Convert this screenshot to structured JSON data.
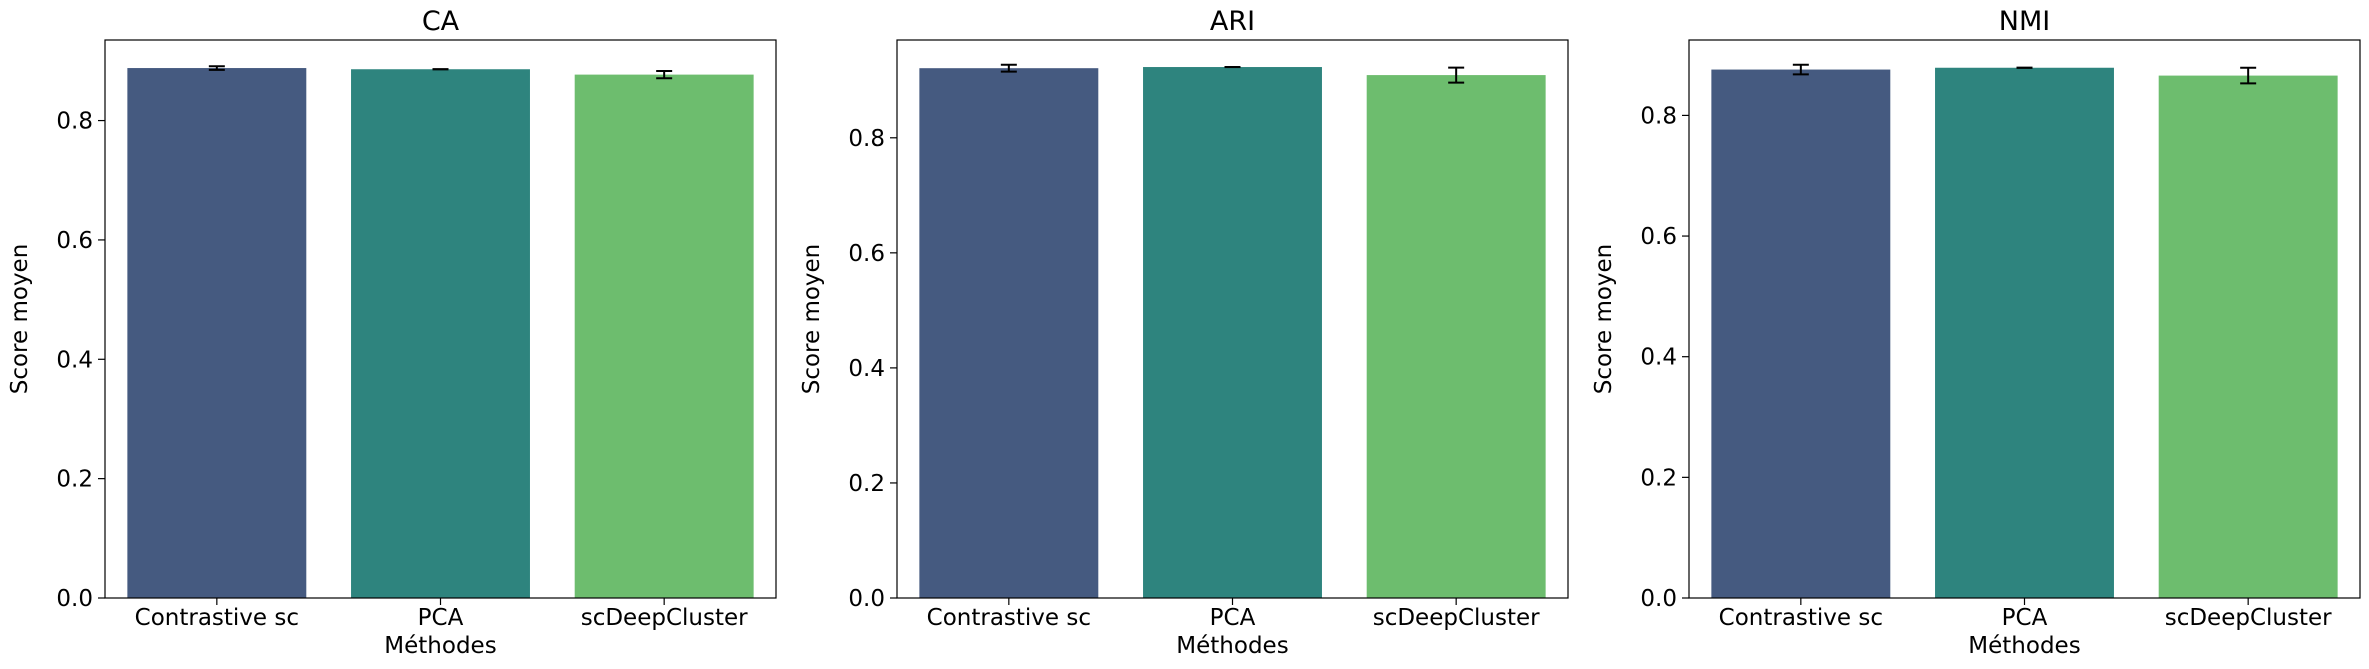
{
  "chart_data": [
    {
      "type": "bar",
      "title": "CA",
      "xlabel": "Méthodes",
      "ylabel": "Score moyen",
      "categories": [
        "Contrastive sc",
        "PCA",
        "scDeepCluster"
      ],
      "values": [
        0.888,
        0.886,
        0.877
      ],
      "errors": [
        0.003,
        0.0,
        0.006
      ],
      "colors": [
        "#455a80",
        "#2e847e",
        "#6dbd6e"
      ],
      "ylim": [
        0,
        0.935
      ],
      "yticks": [
        "0.0",
        "0.2",
        "0.4",
        "0.6",
        "0.8"
      ],
      "grid": false
    },
    {
      "type": "bar",
      "title": "ARI",
      "xlabel": "Méthodes",
      "ylabel": "Score moyen",
      "categories": [
        "Contrastive sc",
        "PCA",
        "scDeepCluster"
      ],
      "values": [
        0.921,
        0.923,
        0.909
      ],
      "errors": [
        0.006,
        0.0,
        0.013
      ],
      "colors": [
        "#455a80",
        "#2e847e",
        "#6dbd6e"
      ],
      "ylim": [
        0,
        0.97
      ],
      "yticks": [
        "0.0",
        "0.2",
        "0.4",
        "0.6",
        "0.8"
      ],
      "grid": false
    },
    {
      "type": "bar",
      "title": "NMI",
      "xlabel": "Méthodes",
      "ylabel": "Score moyen",
      "categories": [
        "Contrastive sc",
        "PCA",
        "scDeepCluster"
      ],
      "values": [
        0.876,
        0.879,
        0.866
      ],
      "errors": [
        0.008,
        0.0,
        0.013
      ],
      "colors": [
        "#455a80",
        "#2e847e",
        "#6dbd6e"
      ],
      "ylim": [
        0,
        0.925
      ],
      "yticks": [
        "0.0",
        "0.2",
        "0.4",
        "0.6",
        "0.8"
      ],
      "grid": false
    }
  ]
}
